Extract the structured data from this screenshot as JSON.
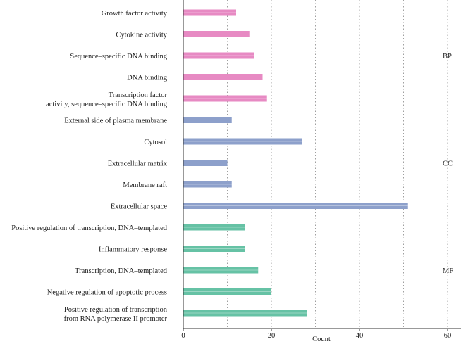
{
  "chart_data": {
    "type": "bar",
    "orientation": "horizontal",
    "xlabel": "Count",
    "ylabel": "",
    "xlim": [
      0,
      62
    ],
    "xticks": [
      0,
      20,
      40,
      60
    ],
    "grid": true,
    "colors": {
      "BP": "#e78ac3",
      "CC": "#8da0cb",
      "MF": "#66c2a5",
      "grid": "#888888",
      "axis": "#333333"
    },
    "groups": [
      {
        "name": "BP",
        "items": [
          {
            "label": [
              "Growth factor activity"
            ],
            "value": 12
          },
          {
            "label": [
              "Cytokine activity"
            ],
            "value": 15
          },
          {
            "label": [
              "Sequence–specific DNA binding"
            ],
            "value": 16
          },
          {
            "label": [
              "DNA binding"
            ],
            "value": 18
          },
          {
            "label": [
              "Transcription factor",
              "activity, sequence–specific DNA binding"
            ],
            "value": 19
          }
        ]
      },
      {
        "name": "CC",
        "items": [
          {
            "label": [
              "External side of plasma membrane"
            ],
            "value": 11
          },
          {
            "label": [
              "Cytosol"
            ],
            "value": 27
          },
          {
            "label": [
              "Extracellular matrix"
            ],
            "value": 10
          },
          {
            "label": [
              "Membrane raft"
            ],
            "value": 11
          },
          {
            "label": [
              "Extracellular space"
            ],
            "value": 51
          }
        ]
      },
      {
        "name": "MF",
        "items": [
          {
            "label": [
              "Positive regulation of transcription, DNA–templated"
            ],
            "value": 14
          },
          {
            "label": [
              "Inflammatory response"
            ],
            "value": 14
          },
          {
            "label": [
              "Transcription, DNA–templated"
            ],
            "value": 17
          },
          {
            "label": [
              "Negative regulation of apoptotic process"
            ],
            "value": 20
          },
          {
            "label": [
              "Positive regulation of transcription",
              "from RNA polymerase II promoter"
            ],
            "value": 28
          }
        ]
      }
    ]
  }
}
